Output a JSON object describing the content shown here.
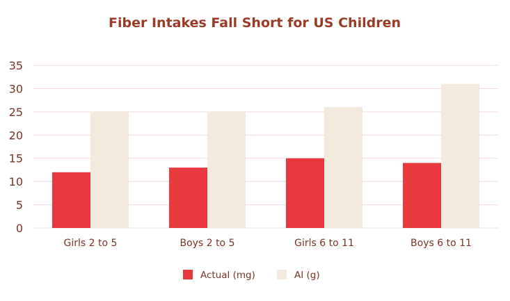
{
  "chart_data": {
    "type": "bar",
    "title": "Fiber Intakes Fall Short for US Children",
    "categories": [
      "Girls 2 to 5",
      "Boys 2 to 5",
      "Girls 6 to 11",
      "Boys 6 to 11"
    ],
    "series": [
      {
        "name": "Actual (mg)",
        "values": [
          12,
          13,
          15,
          14
        ],
        "color": "#e8393e"
      },
      {
        "name": "AI (g)",
        "values": [
          25,
          25,
          26,
          31
        ],
        "color": "#f3eadd"
      }
    ],
    "ylim": [
      0,
      35
    ],
    "yticks": [
      0,
      5,
      10,
      15,
      20,
      25,
      30,
      35
    ],
    "grid": true,
    "legend_position": "bottom"
  }
}
